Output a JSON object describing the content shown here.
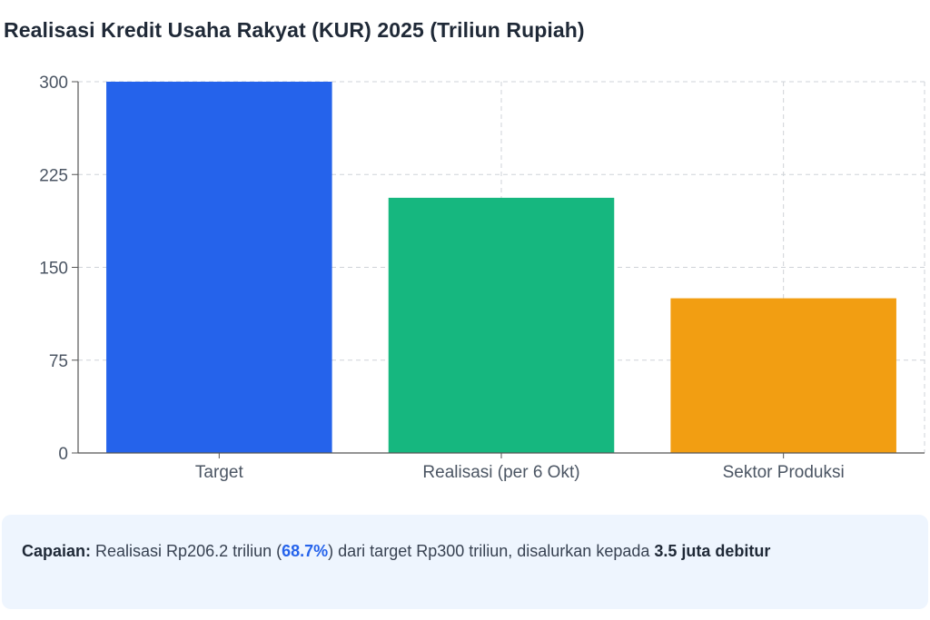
{
  "page": {
    "title": "Realisasi Kredit Usaha Rakyat (KUR) 2025 (Triliun Rupiah)"
  },
  "chart_data": {
    "type": "bar",
    "title": "Realisasi Kredit Usaha Rakyat (KUR) 2025 (Triliun Rupiah)",
    "categories": [
      "Target",
      "Realisasi (per 6 Okt)",
      "Sektor Produksi"
    ],
    "values": [
      300,
      206.2,
      125
    ],
    "colors": [
      "#2563eb",
      "#16b77f",
      "#f29e12"
    ],
    "ylim": [
      0,
      300
    ],
    "yticks": [
      0,
      75,
      150,
      225,
      300
    ],
    "grid": true,
    "legend": "none"
  },
  "summary": {
    "label": "Capaian:",
    "text_before": " Realisasi Rp206.2 triliun (",
    "percent": "68.7%",
    "text_middle": ") dari target Rp300 triliun, disalurkan kepada ",
    "debtors": "3.5 juta debitur"
  },
  "colors": {
    "grid": "#cfd3d8",
    "axis": "#555555",
    "summary_bg": "#eef5fe",
    "accent": "#2563eb"
  }
}
